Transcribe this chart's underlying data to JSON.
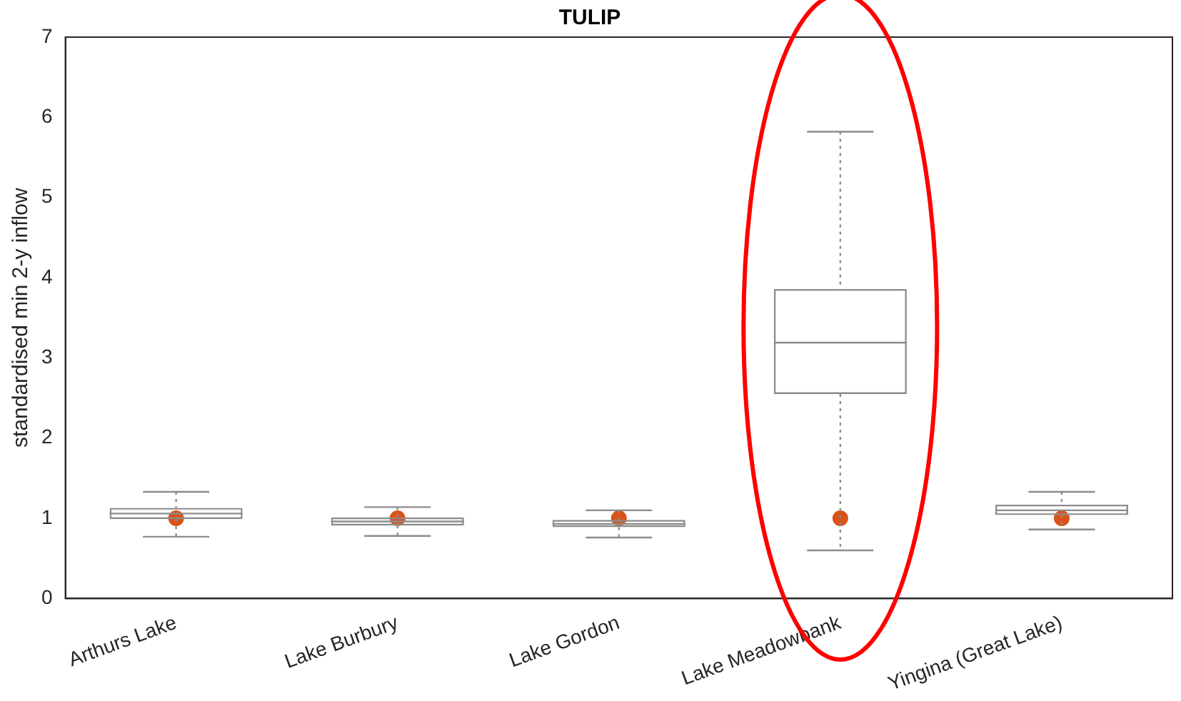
{
  "chart_data": {
    "type": "box",
    "title": "TULIP",
    "ylabel": "standardised min 2-y inflow",
    "categories": [
      "Arthurs Lake",
      "Lake Burbury",
      "Lake Gordon",
      "Lake Meadowbank",
      "Yingina (Great Lake)"
    ],
    "series": [
      {
        "type": "box",
        "color": "#8c8c8c",
        "boxes": [
          {
            "low": 0.77,
            "q1": 0.99,
            "median": 1.06,
            "q3": 1.13,
            "high": 1.33
          },
          {
            "low": 0.78,
            "q1": 0.91,
            "median": 0.96,
            "q3": 1.01,
            "high": 1.14
          },
          {
            "low": 0.76,
            "q1": 0.89,
            "median": 0.93,
            "q3": 0.98,
            "high": 1.1
          },
          {
            "low": 0.6,
            "q1": 2.55,
            "median": 3.19,
            "q3": 3.86,
            "high": 5.82
          },
          {
            "low": 0.86,
            "q1": 1.04,
            "median": 1.1,
            "q3": 1.17,
            "high": 1.33
          }
        ]
      },
      {
        "type": "scatter",
        "color": "#d95319",
        "x": [
          "Arthurs Lake",
          "Lake Burbury",
          "Lake Gordon",
          "Lake Meadowbank",
          "Yingina (Great Lake)"
        ],
        "values": [
          1,
          1,
          1,
          1,
          1
        ]
      }
    ],
    "ylim": [
      0,
      7
    ],
    "yticks": [
      0,
      1,
      2,
      3,
      4,
      5,
      6,
      7
    ],
    "grid": false,
    "marker": "circle"
  }
}
